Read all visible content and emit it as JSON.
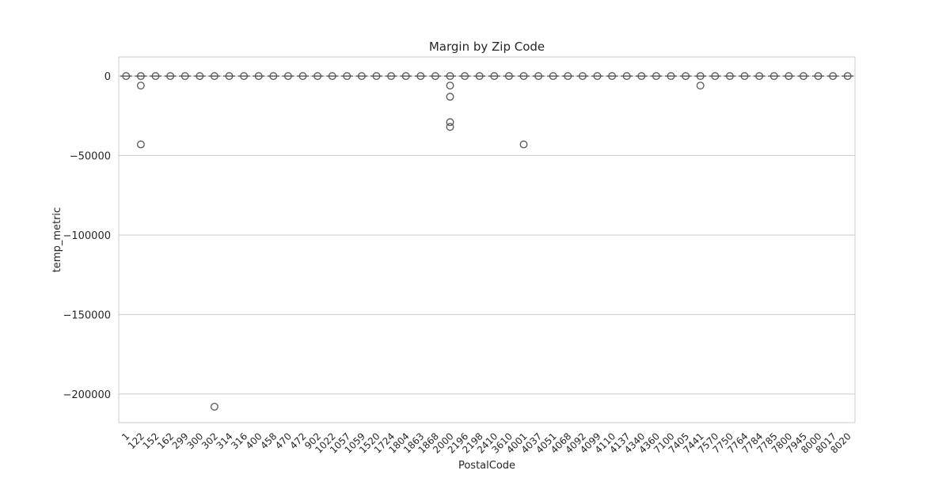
{
  "chart_data": {
    "type": "box",
    "title": "Margin by Zip Code",
    "xlabel": "PostalCode",
    "ylabel": "temp_metric",
    "ylim": [
      -218000,
      12000
    ],
    "yticks": [
      0,
      -50000,
      -100000,
      -150000,
      -200000
    ],
    "ytick_labels": [
      "0",
      "−50000",
      "−100000",
      "−150000",
      "−200000"
    ],
    "grid": "horizontal",
    "categories": [
      "1",
      "122",
      "152",
      "162",
      "299",
      "300",
      "302",
      "314",
      "316",
      "400",
      "458",
      "470",
      "472",
      "902",
      "1022",
      "1057",
      "1059",
      "1520",
      "1724",
      "1804",
      "1863",
      "1868",
      "2000",
      "2196",
      "2198",
      "2410",
      "3610",
      "4001",
      "4037",
      "4051",
      "4068",
      "4092",
      "4099",
      "4110",
      "4137",
      "4340",
      "4360",
      "7100",
      "7405",
      "7441",
      "7570",
      "7750",
      "7764",
      "7784",
      "7785",
      "7800",
      "7945",
      "8000",
      "8017",
      "8020"
    ],
    "outliers": [
      {
        "category": "122",
        "values": [
          -6000,
          -43000
        ]
      },
      {
        "category": "302",
        "values": [
          -208000
        ]
      },
      {
        "category": "2000",
        "values": [
          -6000,
          -13000,
          -29000,
          -32000
        ]
      },
      {
        "category": "4001",
        "values": [
          -43000
        ]
      },
      {
        "category": "7441",
        "values": [
          -6000
        ]
      }
    ],
    "colors": {
      "box_edge": "#555555",
      "grid": "#cccccc",
      "spine": "#cccccc"
    }
  }
}
